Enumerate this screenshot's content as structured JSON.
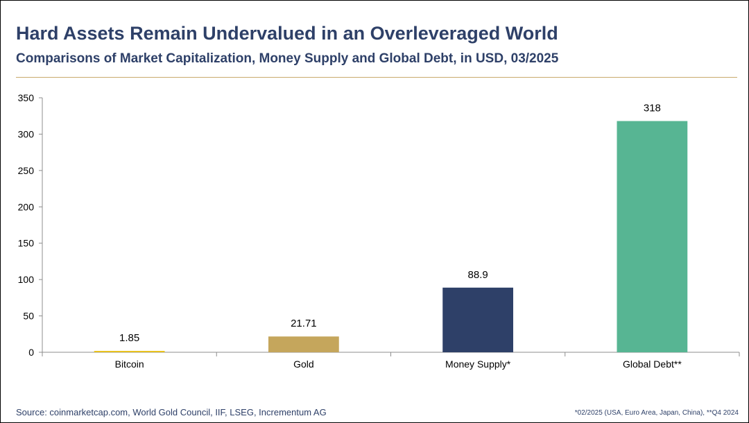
{
  "header": {
    "title": "Hard Assets Remain Undervalued in an Overleveraged World",
    "subtitle": "Comparisons of Market Capitalization, Money Supply and Global Debt, in USD, 03/2025"
  },
  "chart_data": {
    "type": "bar",
    "categories": [
      "Bitcoin",
      "Gold",
      "Money Supply*",
      "Global Debt**"
    ],
    "values": [
      1.85,
      21.71,
      88.9,
      318
    ],
    "data_labels": [
      "1.85",
      "21.71",
      "88.9",
      "318"
    ],
    "colors": [
      "#e8c21e",
      "#c5a65c",
      "#2e4068",
      "#57b593"
    ],
    "ylim": [
      0,
      350
    ],
    "yticks": [
      0,
      50,
      100,
      150,
      200,
      250,
      300,
      350
    ],
    "grid": false,
    "legend": "none"
  },
  "footer": {
    "source": "Source: coinmarketcap.com, World Gold Council, IIF, LSEG, Incrementum AG",
    "footnote": "*02/2025 (USA, Euro Area, Japan, China),  **Q4 2024"
  }
}
